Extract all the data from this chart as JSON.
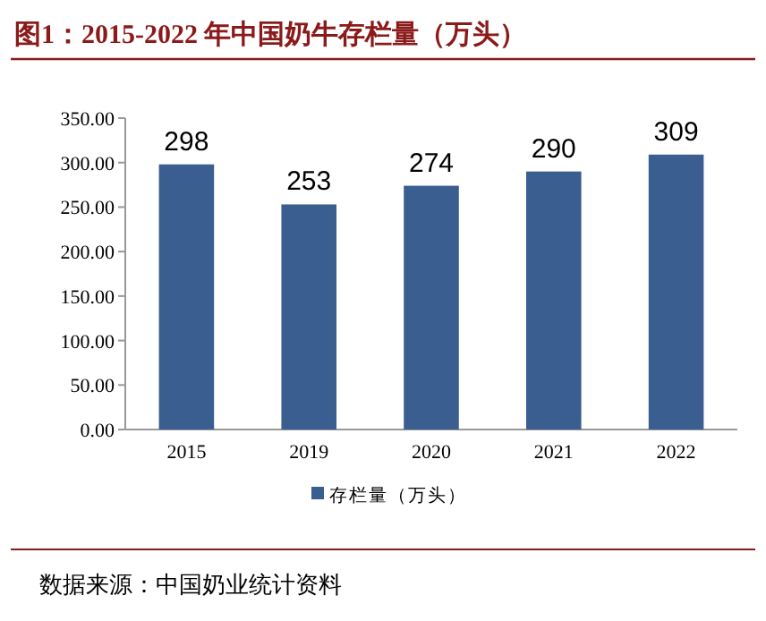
{
  "chart_data": {
    "type": "bar",
    "title": "图1：2015-2022 年中国奶牛存栏量（万头）",
    "categories": [
      "2015",
      "2019",
      "2020",
      "2021",
      "2022"
    ],
    "series": [
      {
        "name": "存栏量（万头）",
        "color": "#3a5e8f",
        "values": [
          298,
          253,
          274,
          290,
          309
        ]
      }
    ],
    "ylim": [
      0,
      350
    ],
    "yticks": [
      {
        "value": 0,
        "label": "0.00"
      },
      {
        "value": 50,
        "label": "50.00"
      },
      {
        "value": 100,
        "label": "100.00"
      },
      {
        "value": 150,
        "label": "150.00"
      },
      {
        "value": 200,
        "label": "200.00"
      },
      {
        "value": 250,
        "label": "250.00"
      },
      {
        "value": 300,
        "label": "300.00"
      },
      {
        "value": 350,
        "label": "350.00"
      }
    ],
    "data_labels": true,
    "legend": "bottom",
    "grid": false,
    "annotations": [
      "数据来源：中国奶业统计资料"
    ]
  }
}
